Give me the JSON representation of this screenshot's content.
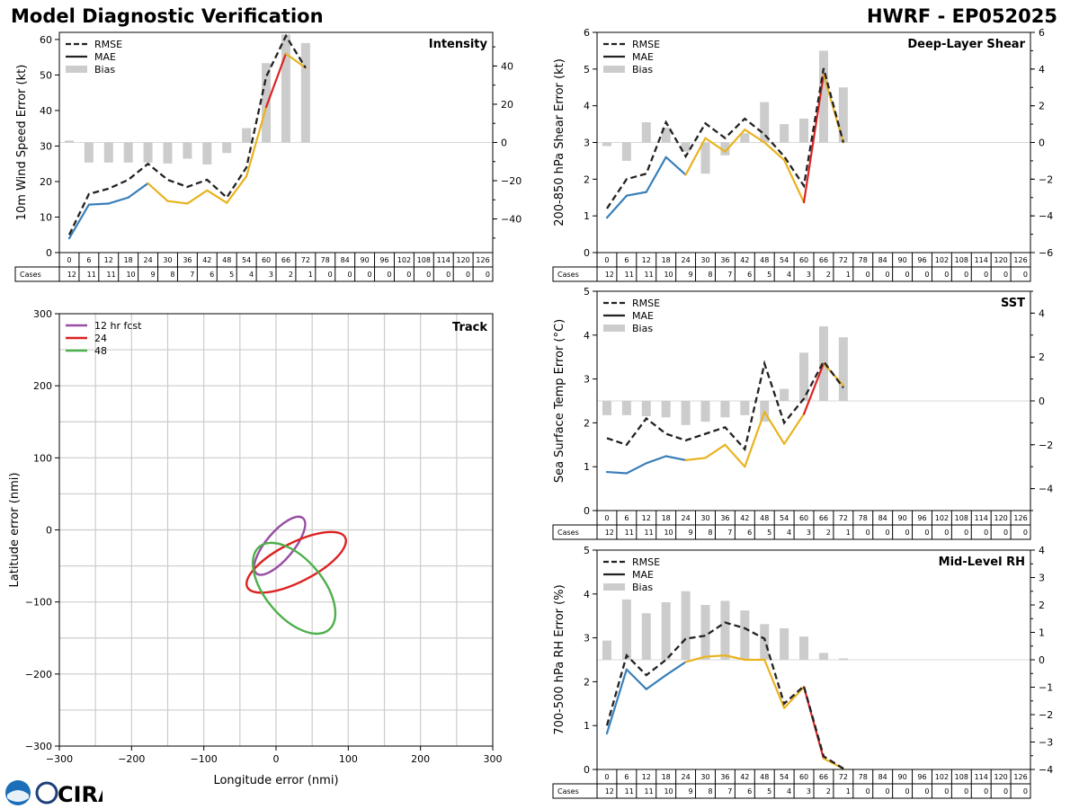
{
  "header": {
    "title": "Model Diagnostic Verification",
    "model": "HWRF - EP052025"
  },
  "logo": {
    "text": "CIRA"
  },
  "colors": {
    "rmse": "#222222",
    "bias": "#cccccc",
    "seg_blue": "#3a7fb8",
    "seg_yellow": "#e9b31f",
    "seg_red": "#dd2222",
    "track_12": "#984ea3",
    "track_24": "#dd2222",
    "track_48": "#4daf4a",
    "grid": "#cccccc"
  },
  "table": {
    "cases_label": "Cases",
    "hours": [
      0,
      6,
      12,
      18,
      24,
      30,
      36,
      42,
      48,
      54,
      60,
      66,
      72,
      78,
      84,
      90,
      96,
      102,
      108,
      114,
      120,
      126
    ],
    "cases": [
      12,
      11,
      11,
      10,
      9,
      8,
      7,
      6,
      5,
      4,
      3,
      2,
      1,
      0,
      0,
      0,
      0,
      0,
      0,
      0,
      0,
      0
    ]
  },
  "legend_labels": {
    "rmse": "RMSE",
    "mae": "MAE",
    "bias": "Bias"
  },
  "chart_data": [
    {
      "id": "intensity",
      "type": "line",
      "title": "Intensity",
      "ylabel": "10m Wind Speed Error (kt)",
      "ylim": [
        0,
        62
      ],
      "yticks": [
        0,
        10,
        20,
        30,
        40,
        50,
        60
      ],
      "y2lim": [
        -57.6,
        57.6
      ],
      "y2ticks": [
        -40,
        -20,
        0,
        20,
        40
      ],
      "hours": [
        0,
        6,
        12,
        18,
        24,
        30,
        36,
        42,
        48,
        54,
        60,
        66,
        72
      ],
      "rmse": [
        5,
        16.5,
        18,
        20.5,
        25,
        20.5,
        18.5,
        20.5,
        15.5,
        24,
        49.5,
        61,
        52
      ],
      "mae": [
        4,
        13.5,
        13.8,
        15.5,
        19.5,
        14.5,
        13.8,
        17.5,
        14,
        21.5,
        41,
        56,
        52
      ],
      "bias": [
        1,
        -10.5,
        -10.5,
        -10.5,
        -10.5,
        -11,
        -8.5,
        -11.5,
        -5.5,
        7.5,
        41.5,
        56.5,
        52
      ]
    },
    {
      "id": "shear",
      "type": "line",
      "title": "Deep-Layer Shear",
      "ylabel": "200-850 hPa Shear Error (kt)",
      "ylim": [
        0,
        6
      ],
      "yticks": [
        0,
        1,
        2,
        3,
        4,
        5,
        6
      ],
      "y2lim": [
        -6,
        6
      ],
      "y2ticks": [
        -6,
        -4,
        -2,
        0,
        2,
        4,
        6
      ],
      "hours": [
        0,
        6,
        12,
        18,
        24,
        30,
        36,
        42,
        48,
        54,
        60,
        66,
        72
      ],
      "rmse": [
        1.2,
        2.0,
        2.15,
        3.55,
        2.62,
        3.52,
        3.12,
        3.65,
        3.22,
        2.62,
        1.82,
        5.02,
        3.0
      ],
      "mae": [
        0.95,
        1.55,
        1.65,
        2.6,
        2.12,
        3.12,
        2.75,
        3.35,
        3.0,
        2.52,
        1.37,
        4.85,
        3.0
      ],
      "bias": [
        -0.2,
        -1.0,
        1.1,
        0.8,
        -0.5,
        -1.7,
        -0.7,
        0.5,
        2.2,
        1.0,
        1.3,
        5.0,
        3.0
      ]
    },
    {
      "id": "sst",
      "type": "line",
      "title": "SST",
      "ylabel": "Sea Surface Temp Error (°C)",
      "ylim": [
        0,
        5
      ],
      "yticks": [
        0,
        1,
        2,
        3,
        4,
        5
      ],
      "y2lim": [
        -5,
        5
      ],
      "y2ticks": [
        -4,
        -2,
        0,
        2,
        4
      ],
      "hours": [
        0,
        6,
        12,
        18,
        24,
        30,
        36,
        42,
        48,
        54,
        60,
        66,
        72
      ],
      "rmse": [
        1.65,
        1.5,
        2.1,
        1.75,
        1.6,
        1.75,
        1.9,
        1.4,
        3.35,
        2.0,
        2.55,
        3.4,
        2.8
      ],
      "mae": [
        0.88,
        0.85,
        1.08,
        1.24,
        1.15,
        1.2,
        1.5,
        1.0,
        2.25,
        1.52,
        2.2,
        3.35,
        2.85
      ],
      "bias": [
        -0.65,
        -0.65,
        -0.7,
        -0.75,
        -1.1,
        -0.95,
        -0.75,
        -0.65,
        -0.95,
        0.55,
        2.2,
        3.4,
        2.9
      ]
    },
    {
      "id": "rh",
      "type": "line",
      "title": "Mid-Level RH",
      "ylabel": "700-500 hPa RH Error (%)",
      "ylim": [
        0,
        5
      ],
      "yticks": [
        0,
        1,
        2,
        3,
        4,
        5
      ],
      "y2lim": [
        -4,
        4
      ],
      "y2ticks": [
        -4,
        -3,
        -2,
        -1,
        0,
        1,
        2,
        3,
        4
      ],
      "hours": [
        0,
        6,
        12,
        18,
        24,
        30,
        36,
        42,
        48,
        54,
        60,
        66,
        72
      ],
      "rmse": [
        1.0,
        2.6,
        2.15,
        2.5,
        2.98,
        3.05,
        3.35,
        3.22,
        2.98,
        1.5,
        1.9,
        0.3,
        0.02
      ],
      "mae": [
        0.82,
        2.28,
        1.83,
        2.15,
        2.45,
        2.57,
        2.6,
        2.5,
        2.5,
        1.4,
        1.88,
        0.25,
        0.02
      ],
      "bias": [
        0.7,
        2.2,
        1.7,
        2.1,
        2.5,
        2.0,
        2.15,
        1.8,
        1.3,
        1.15,
        0.85,
        0.25,
        0.05
      ]
    },
    {
      "id": "track",
      "type": "scatter",
      "title": "Track",
      "xlabel": "Longitude error (nmi)",
      "ylabel": "Latitude error (nmi)",
      "xlim": [
        -300,
        300
      ],
      "ylim": [
        -300,
        300
      ],
      "ticks": [
        -300,
        -200,
        -100,
        0,
        100,
        200,
        300
      ],
      "ellipses": [
        {
          "label": "12 hr fcst",
          "cx": 5,
          "cy": -22,
          "rx": 50,
          "ry": 19,
          "angle_deg": -50
        },
        {
          "label": "24",
          "cx": 28,
          "cy": -45,
          "rx": 76,
          "ry": 27,
          "angle_deg": -27
        },
        {
          "label": "48",
          "cx": 25,
          "cy": -81,
          "rx": 75,
          "ry": 40,
          "angle_deg": 50
        }
      ]
    }
  ]
}
